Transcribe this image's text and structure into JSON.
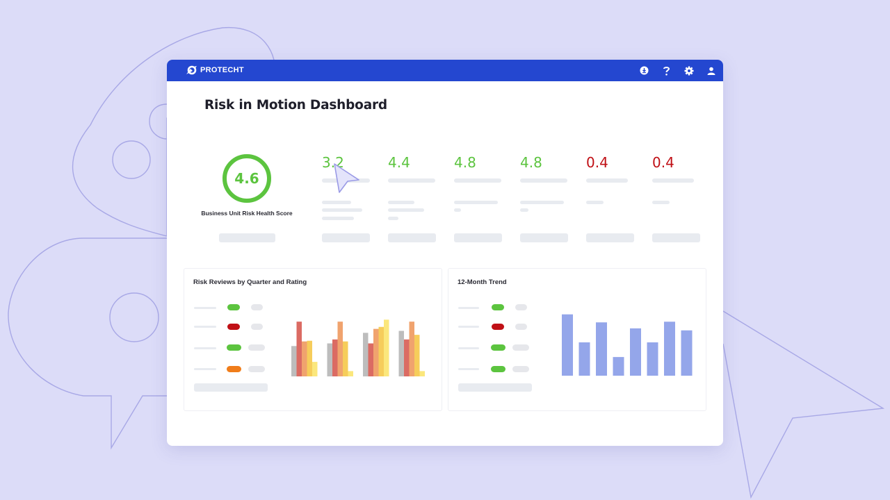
{
  "app": {
    "brand": "PROTECHT"
  },
  "topbar_icons": [
    "download-icon",
    "help-icon",
    "settings-icon",
    "user-icon"
  ],
  "dashboard": {
    "title": "Risk in Motion Dashboard",
    "health_score": {
      "value": "4.6",
      "label": "Business Unit Risk Health Score",
      "fill_fraction": 1.0
    },
    "metrics": [
      {
        "value": "3.2",
        "status": "good"
      },
      {
        "value": "4.4",
        "status": "good"
      },
      {
        "value": "4.8",
        "status": "good"
      },
      {
        "value": "4.8",
        "status": "good"
      },
      {
        "value": "0.4",
        "status": "bad"
      },
      {
        "value": "0.4",
        "status": "bad"
      }
    ]
  },
  "reviews_card": {
    "title": "Risk Reviews by Quarter and Rating",
    "legend_colors": [
      "#5cc43f",
      "#c01016",
      "#5cc43f",
      "#f07d1a"
    ]
  },
  "trend_card": {
    "title": "12-Month Trend",
    "legend_colors": [
      "#5cc43f",
      "#c01016",
      "#5cc43f",
      "#5cc43f"
    ]
  },
  "colors": {
    "brand": "#2447d0",
    "good": "#5cc43f",
    "bad": "#c01016",
    "trend_bar": "#94a6ea"
  },
  "chart_data": [
    {
      "type": "bar",
      "title": "Risk Reviews by Quarter and Rating",
      "categories": [
        "",
        "",
        "",
        ""
      ],
      "series": [
        {
          "color": "#bdbdbd",
          "values": [
            46,
            50,
            66,
            69
          ]
        },
        {
          "color": "#db6b63",
          "values": [
            83,
            56,
            50,
            56
          ]
        },
        {
          "color": "#f0a36e",
          "values": [
            53,
            83,
            72,
            83
          ]
        },
        {
          "color": "#f6cd5b",
          "values": [
            54,
            53,
            75,
            63
          ]
        },
        {
          "color": "#fbe77c",
          "values": [
            22,
            8,
            86,
            8
          ]
        }
      ],
      "ylim": [
        0,
        100
      ]
    },
    {
      "type": "bar",
      "title": "12-Month Trend",
      "categories": [
        "",
        "",
        "",
        "",
        "",
        "",
        "",
        ""
      ],
      "values": [
        92,
        50,
        80,
        28,
        71,
        50,
        81,
        68
      ],
      "ylim": [
        0,
        100
      ]
    }
  ]
}
